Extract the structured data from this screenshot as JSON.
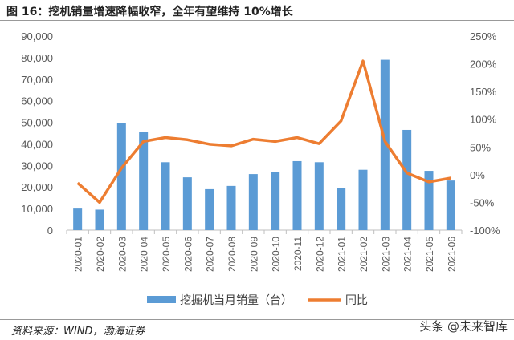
{
  "title": "图 16：挖机销量增速降幅收窄，全年有望维持 10%增长",
  "footer": "资料来源：WIND，渤海证券",
  "watermark": "头条 @未来智库",
  "chart_data": {
    "type": "bar+line",
    "categories": [
      "2020-01",
      "2020-02",
      "2020-03",
      "2020-04",
      "2020-05",
      "2020-06",
      "2020-07",
      "2020-08",
      "2020-09",
      "2020-10",
      "2020-11",
      "2020-12",
      "2021-01",
      "2021-02",
      "2021-03",
      "2021-04",
      "2021-05",
      "2021-06"
    ],
    "series": [
      {
        "name": "挖掘机当月销量（台）",
        "type": "bar",
        "axis": "left",
        "color": "#5b9bd5",
        "values": [
          10000,
          9500,
          49500,
          45500,
          31500,
          24500,
          19000,
          20500,
          26000,
          27000,
          32000,
          31500,
          19500,
          28000,
          79000,
          46500,
          27500,
          23000
        ]
      },
      {
        "name": "同比",
        "type": "line",
        "axis": "right",
        "color": "#ed7d31",
        "values": [
          -15,
          -50,
          12,
          60,
          67,
          63,
          55,
          52,
          64,
          60,
          67,
          56,
          97,
          205,
          60,
          3,
          -13,
          -6
        ]
      }
    ],
    "left_axis": {
      "ylim": [
        0,
        90000
      ],
      "ticks": [
        "0",
        "10,000",
        "20,000",
        "30,000",
        "40,000",
        "50,000",
        "60,000",
        "70,000",
        "80,000",
        "90,000"
      ]
    },
    "right_axis": {
      "ylim": [
        -100,
        250
      ],
      "ticks": [
        "-100%",
        "-50%",
        "0%",
        "50%",
        "100%",
        "150%",
        "200%",
        "250%"
      ]
    },
    "grid": false,
    "legend": "bottom"
  }
}
